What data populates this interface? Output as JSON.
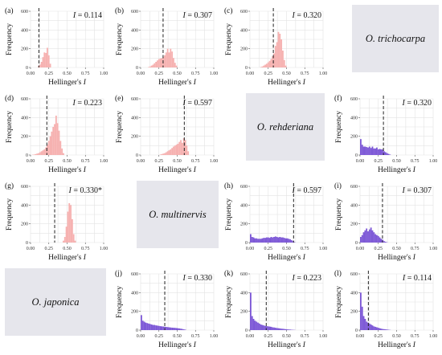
{
  "figure": {
    "species": {
      "trichocarpa": "O. trichocarpa",
      "rehderiana": "O. rehderiana",
      "multinervis": "O. multinervis",
      "japonica": "O. japonica"
    }
  },
  "chart_data": [
    {
      "id": "a",
      "type": "bar",
      "panel_label": "(a)",
      "stat_label": "I = 0.114",
      "observed": 0.114,
      "ylabel": "Frequency",
      "xlabel": "Hellinger's I",
      "xlim": [
        0,
        1
      ],
      "ylim": [
        0,
        600
      ],
      "xticks": [
        "0.00",
        "0.25",
        "0.50",
        "0.75",
        "1.00"
      ],
      "yticks": [
        "0",
        "200",
        "400",
        "600"
      ],
      "grid": true,
      "color": "#f6b1b0",
      "bin_width": 0.02,
      "bins": [
        0.1,
        0.12,
        0.14,
        0.16,
        0.18,
        0.2,
        0.22,
        0.24,
        0.26
      ],
      "values": [
        15,
        30,
        60,
        110,
        160,
        155,
        210,
        130,
        40
      ]
    },
    {
      "id": "b",
      "type": "bar",
      "panel_label": "(b)",
      "stat_label": "I = 0.307",
      "observed": 0.307,
      "ylabel": "Frequency",
      "xlabel": "Hellinger's I",
      "xlim": [
        0,
        1
      ],
      "ylim": [
        0,
        600
      ],
      "xticks": [
        "0.00",
        "0.25",
        "0.50",
        "0.75",
        "1.00"
      ],
      "yticks": [
        "0",
        "200",
        "400",
        "600"
      ],
      "grid": true,
      "color": "#f6b1b0",
      "bin_width": 0.02,
      "bins": [
        0.1,
        0.12,
        0.14,
        0.16,
        0.18,
        0.2,
        0.22,
        0.24,
        0.26,
        0.28,
        0.3,
        0.32,
        0.34,
        0.36,
        0.38,
        0.4,
        0.42,
        0.44,
        0.46,
        0.48
      ],
      "values": [
        5,
        10,
        20,
        30,
        45,
        60,
        75,
        90,
        95,
        100,
        110,
        130,
        160,
        200,
        160,
        200,
        170,
        100,
        50,
        20
      ]
    },
    {
      "id": "c",
      "type": "bar",
      "panel_label": "(c)",
      "stat_label": "I = 0.320",
      "observed": 0.32,
      "ylabel": "Frequency",
      "xlabel": "Hellinger's I",
      "xlim": [
        0,
        1
      ],
      "ylim": [
        0,
        600
      ],
      "xticks": [
        "0.00",
        "0.25",
        "0.50",
        "0.75",
        "1.00"
      ],
      "yticks": [
        "0",
        "200",
        "400",
        "600"
      ],
      "grid": true,
      "color": "#f6b1b0",
      "bin_width": 0.02,
      "bins": [
        0.14,
        0.16,
        0.18,
        0.2,
        0.22,
        0.24,
        0.26,
        0.28,
        0.3,
        0.32,
        0.34,
        0.36,
        0.38,
        0.4,
        0.42,
        0.44,
        0.46,
        0.48
      ],
      "values": [
        5,
        10,
        20,
        30,
        40,
        55,
        70,
        90,
        120,
        150,
        230,
        270,
        380,
        360,
        300,
        180,
        80,
        20
      ]
    },
    {
      "id": "d",
      "type": "bar",
      "panel_label": "(d)",
      "stat_label": "I = 0.223",
      "observed": 0.223,
      "ylabel": "Frequency",
      "xlabel": "Hellinger's I",
      "xlim": [
        0,
        1
      ],
      "ylim": [
        0,
        600
      ],
      "xticks": [
        "0.00",
        "0.25",
        "0.50",
        "0.75",
        "1.00"
      ],
      "yticks": [
        "0",
        "200",
        "400",
        "600"
      ],
      "grid": true,
      "color": "#f6b1b0",
      "bin_width": 0.02,
      "bins": [
        0.02,
        0.04,
        0.06,
        0.08,
        0.1,
        0.12,
        0.14,
        0.16,
        0.18,
        0.2,
        0.22,
        0.24,
        0.26,
        0.28,
        0.3,
        0.32,
        0.34,
        0.36,
        0.38,
        0.4,
        0.42,
        0.44
      ],
      "values": [
        3,
        5,
        10,
        15,
        20,
        30,
        40,
        50,
        60,
        80,
        110,
        150,
        200,
        250,
        300,
        330,
        420,
        340,
        260,
        150,
        70,
        20
      ]
    },
    {
      "id": "e",
      "type": "bar",
      "panel_label": "(e)",
      "stat_label": "I = 0.597",
      "observed": 0.597,
      "ylabel": "Frequency",
      "xlabel": "Hellinger's I",
      "xlim": [
        0,
        1
      ],
      "ylim": [
        0,
        600
      ],
      "xticks": [
        "0.00",
        "0.25",
        "0.50",
        "0.75",
        "1.00"
      ],
      "yticks": [
        "0",
        "200",
        "400",
        "600"
      ],
      "grid": true,
      "color": "#f6b1b0",
      "bin_width": 0.02,
      "bins": [
        0.26,
        0.28,
        0.3,
        0.32,
        0.34,
        0.36,
        0.38,
        0.4,
        0.42,
        0.44,
        0.46,
        0.48,
        0.5,
        0.52,
        0.54,
        0.56,
        0.58,
        0.6,
        0.62,
        0.64
      ],
      "values": [
        5,
        10,
        15,
        20,
        30,
        40,
        50,
        60,
        75,
        90,
        100,
        110,
        120,
        140,
        160,
        130,
        180,
        160,
        100,
        40
      ]
    },
    {
      "id": "f",
      "type": "bar",
      "panel_label": "(f)",
      "stat_label": "I = 0.320",
      "observed": 0.32,
      "ylabel": "Frequency",
      "xlabel": "Hellinger's I",
      "xlim": [
        0,
        1
      ],
      "ylim": [
        0,
        600
      ],
      "xticks": [
        "0.00",
        "0.25",
        "0.50",
        "0.75",
        "1.00"
      ],
      "yticks": [
        "0",
        "200",
        "400",
        "600"
      ],
      "grid": true,
      "color": "#7c57d6",
      "bin_width": 0.02,
      "bins": [
        0.0,
        0.02,
        0.04,
        0.06,
        0.08,
        0.1,
        0.12,
        0.14,
        0.16,
        0.18,
        0.2,
        0.22,
        0.24,
        0.26,
        0.28,
        0.3,
        0.32,
        0.34,
        0.36,
        0.38,
        0.4
      ],
      "values": [
        170,
        110,
        90,
        90,
        85,
        80,
        90,
        75,
        90,
        70,
        70,
        80,
        60,
        65,
        60,
        60,
        40,
        30,
        20,
        12,
        5
      ]
    },
    {
      "id": "g",
      "type": "bar",
      "panel_label": "(g)",
      "stat_label": "I = 0.330*",
      "observed": 0.33,
      "ylabel": "Frequency",
      "xlabel": "Hellinger's I",
      "xlim": [
        0,
        1
      ],
      "ylim": [
        0,
        600
      ],
      "xticks": [
        "0.00",
        "0.25",
        "0.50",
        "0.75",
        "1.00"
      ],
      "yticks": [
        "0",
        "200",
        "400",
        "600"
      ],
      "grid": true,
      "color": "#f6b1b0",
      "bin_width": 0.02,
      "bins": [
        0.44,
        0.46,
        0.48,
        0.5,
        0.52,
        0.54,
        0.56,
        0.58,
        0.6
      ],
      "values": [
        20,
        60,
        170,
        330,
        420,
        400,
        250,
        90,
        20
      ]
    },
    {
      "id": "h",
      "type": "bar",
      "panel_label": "(h)",
      "stat_label": "I = 0.597",
      "observed": 0.597,
      "ylabel": "Frequency",
      "xlabel": "Hellinger's I",
      "xlim": [
        0,
        1
      ],
      "ylim": [
        0,
        600
      ],
      "xticks": [
        "0.00",
        "0.25",
        "0.50",
        "0.75",
        "1.00"
      ],
      "yticks": [
        "0",
        "200",
        "400",
        "600"
      ],
      "grid": true,
      "color": "#7c57d6",
      "bin_width": 0.02,
      "bins": [
        0.0,
        0.02,
        0.04,
        0.06,
        0.08,
        0.1,
        0.12,
        0.14,
        0.16,
        0.18,
        0.2,
        0.22,
        0.24,
        0.26,
        0.28,
        0.3,
        0.32,
        0.34,
        0.36,
        0.38,
        0.4,
        0.42,
        0.44,
        0.46,
        0.48,
        0.5,
        0.52,
        0.54,
        0.56,
        0.58,
        0.6
      ],
      "values": [
        90,
        60,
        55,
        45,
        45,
        40,
        40,
        40,
        45,
        50,
        50,
        55,
        55,
        50,
        60,
        55,
        60,
        65,
        60,
        55,
        60,
        55,
        55,
        50,
        45,
        45,
        40,
        35,
        25,
        15,
        5
      ]
    },
    {
      "id": "i",
      "type": "bar",
      "panel_label": "(i)",
      "stat_label": "I = 0.307",
      "observed": 0.307,
      "ylabel": "Frequency",
      "xlabel": "Hellinger's I",
      "xlim": [
        0,
        1
      ],
      "ylim": [
        0,
        600
      ],
      "xticks": [
        "0.00",
        "0.25",
        "0.50",
        "0.75",
        "1.00"
      ],
      "yticks": [
        "0",
        "200",
        "400",
        "600"
      ],
      "grid": true,
      "color": "#7c57d6",
      "bin_width": 0.02,
      "bins": [
        0.0,
        0.02,
        0.04,
        0.06,
        0.08,
        0.1,
        0.12,
        0.14,
        0.16,
        0.18,
        0.2,
        0.22,
        0.24,
        0.26,
        0.28,
        0.3,
        0.32,
        0.34,
        0.36
      ],
      "values": [
        60,
        80,
        110,
        130,
        150,
        120,
        140,
        160,
        130,
        110,
        90,
        80,
        70,
        55,
        40,
        30,
        15,
        8,
        3
      ]
    },
    {
      "id": "j",
      "type": "bar",
      "panel_label": "(j)",
      "stat_label": "I = 0.330",
      "observed": 0.33,
      "ylabel": "Frequency",
      "xlabel": "Hellinger's I",
      "xlim": [
        0,
        1
      ],
      "ylim": [
        0,
        600
      ],
      "xticks": [
        "0.00",
        "0.25",
        "0.50",
        "0.75",
        "1.00"
      ],
      "yticks": [
        "0",
        "200",
        "400",
        "600"
      ],
      "grid": true,
      "color": "#7c57d6",
      "bin_width": 0.02,
      "bins": [
        0.0,
        0.02,
        0.04,
        0.06,
        0.08,
        0.1,
        0.12,
        0.14,
        0.16,
        0.18,
        0.2,
        0.22,
        0.24,
        0.26,
        0.28,
        0.3,
        0.32,
        0.34,
        0.36,
        0.38,
        0.4,
        0.42,
        0.44,
        0.46,
        0.48,
        0.5,
        0.52,
        0.54,
        0.56,
        0.58,
        0.6
      ],
      "values": [
        160,
        100,
        90,
        80,
        75,
        70,
        65,
        60,
        55,
        55,
        50,
        48,
        45,
        42,
        40,
        38,
        36,
        34,
        32,
        30,
        28,
        26,
        25,
        24,
        22,
        20,
        18,
        15,
        12,
        8,
        5
      ]
    },
    {
      "id": "k",
      "type": "bar",
      "panel_label": "(k)",
      "stat_label": "I = 0.223",
      "observed": 0.223,
      "ylabel": "Frequency",
      "xlabel": "Hellinger's I",
      "xlim": [
        0,
        1
      ],
      "ylim": [
        0,
        600
      ],
      "xticks": [
        "0.00",
        "0.25",
        "0.50",
        "0.75",
        "1.00"
      ],
      "yticks": [
        "0",
        "200",
        "400",
        "600"
      ],
      "grid": true,
      "color": "#7c57d6",
      "bin_width": 0.02,
      "bins": [
        0.0,
        0.02,
        0.04,
        0.06,
        0.08,
        0.1,
        0.12,
        0.14,
        0.16,
        0.18,
        0.2,
        0.22,
        0.24,
        0.26,
        0.28,
        0.3,
        0.32,
        0.34,
        0.36,
        0.38,
        0.4,
        0.42,
        0.44,
        0.46,
        0.48,
        0.5,
        0.52,
        0.54,
        0.56,
        0.58,
        0.6
      ],
      "values": [
        400,
        150,
        120,
        100,
        90,
        80,
        70,
        60,
        55,
        50,
        45,
        42,
        40,
        38,
        35,
        30,
        28,
        25,
        22,
        20,
        18,
        15,
        14,
        12,
        10,
        8,
        7,
        6,
        4,
        3,
        2
      ]
    },
    {
      "id": "l",
      "type": "bar",
      "panel_label": "(l)",
      "stat_label": "I = 0.114",
      "observed": 0.114,
      "ylabel": "Frequency",
      "xlabel": "Hellinger's I",
      "xlim": [
        0,
        1
      ],
      "ylim": [
        0,
        600
      ],
      "xticks": [
        "0.00",
        "0.25",
        "0.50",
        "0.75",
        "1.00"
      ],
      "yticks": [
        "0",
        "200",
        "400",
        "600"
      ],
      "grid": true,
      "color": "#7c57d6",
      "bin_width": 0.02,
      "bins": [
        0.0,
        0.02,
        0.04,
        0.06,
        0.08,
        0.1,
        0.12,
        0.14,
        0.16,
        0.18,
        0.2,
        0.22,
        0.24,
        0.26,
        0.28,
        0.3,
        0.32,
        0.34,
        0.36,
        0.38,
        0.4
      ],
      "values": [
        400,
        250,
        150,
        120,
        90,
        80,
        70,
        60,
        50,
        40,
        35,
        30,
        25,
        20,
        15,
        12,
        10,
        8,
        6,
        4,
        2
      ]
    }
  ]
}
